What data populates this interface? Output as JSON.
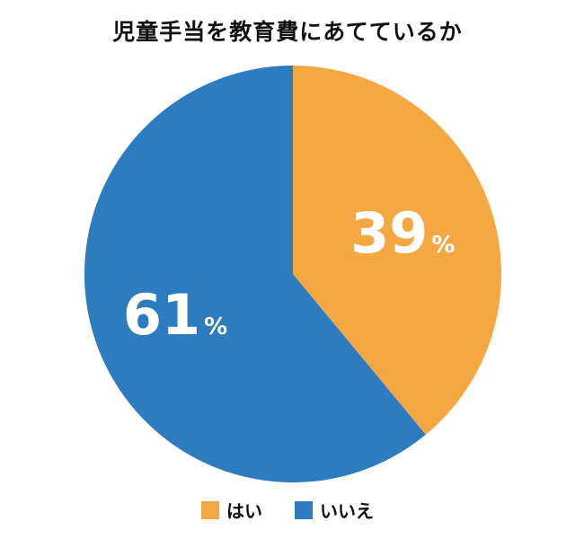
{
  "chart_data": {
    "type": "pie",
    "title": "児童手当を教育費にあてているか",
    "unit": "%",
    "slices": [
      {
        "label": "はい",
        "value": 39,
        "color": "#F5A742"
      },
      {
        "label": "いいえ",
        "value": 61,
        "color": "#2E7CC0"
      }
    ],
    "legend_position": "bottom"
  }
}
